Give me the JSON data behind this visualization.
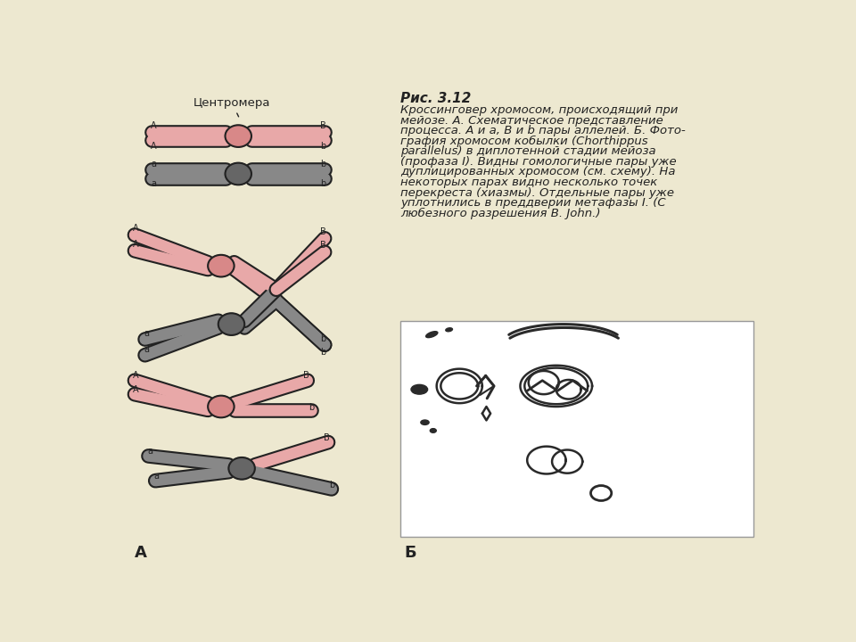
{
  "bg_color": "#ede8d0",
  "title_bold": "Рис. 3.12",
  "caption_lines": [
    "Кроссинговер хромосом, происходящий при",
    "мейозе. А. Схематическое представление",
    "процесса. А и а, В и b пары аллелей. Б. Фото-",
    "графия хромосом кобылки (Chorthippus",
    "parallelus) в диплотенной стадии мейоза",
    "(профаза I). Видны гомологичные пары уже",
    "дуплицированных хромосом (см. схему). На",
    "некоторых парах видно несколько точек",
    "перекреста (хиазмы). Отдельные пары уже",
    "уплотнились в преддверии метафазы I. (С",
    "любезного разрешения В. John.)"
  ],
  "label_centromere": "Центромера",
  "label_A": "А",
  "label_B": "Б",
  "pink_color": "#e8a8a8",
  "gray_color": "#888888",
  "outline_color": "#222222",
  "pink_cent": "#d88888",
  "gray_cent": "#666666",
  "white": "#ffffff"
}
